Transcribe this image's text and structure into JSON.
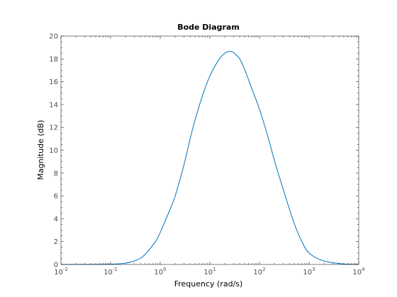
{
  "chart_data": {
    "type": "line",
    "title": "Bode Diagram",
    "xlabel": "Frequency  (rad/s)",
    "ylabel": "Magnitude (dB)",
    "xscale": "log",
    "xlim": [
      0.01,
      10000
    ],
    "ylim": [
      0,
      20
    ],
    "yticks": [
      0,
      2,
      4,
      6,
      8,
      10,
      12,
      14,
      16,
      18,
      20
    ],
    "xticks": [
      {
        "value": 0.01,
        "base": "10",
        "exp": "-2"
      },
      {
        "value": 0.1,
        "base": "10",
        "exp": "-1"
      },
      {
        "value": 1,
        "base": "10",
        "exp": "0"
      },
      {
        "value": 10,
        "base": "10",
        "exp": "1"
      },
      {
        "value": 100,
        "base": "10",
        "exp": "2"
      },
      {
        "value": 1000,
        "base": "10",
        "exp": "3"
      },
      {
        "value": 10000,
        "base": "10",
        "exp": "4"
      }
    ],
    "grid": false,
    "series": [
      {
        "color": "#0072bd",
        "x": [
          0.01,
          0.05,
          0.1,
          0.15,
          0.2,
          0.3,
          0.4,
          0.5,
          0.6,
          0.8,
          1,
          1.5,
          2,
          3,
          4,
          5,
          7,
          10,
          15,
          20,
          25,
          30,
          40,
          50,
          70,
          100,
          150,
          200,
          300,
          500,
          700,
          1000,
          2000,
          5000,
          10000
        ],
        "y": [
          0.0,
          0.01,
          0.03,
          0.06,
          0.12,
          0.3,
          0.55,
          0.9,
          1.3,
          2.0,
          2.8,
          4.6,
          6.0,
          8.7,
          11.0,
          12.6,
          14.7,
          16.5,
          17.9,
          18.5,
          18.65,
          18.55,
          18.0,
          17.1,
          15.4,
          13.6,
          11.1,
          9.1,
          6.6,
          3.6,
          2.1,
          1.0,
          0.3,
          0.05,
          0.01
        ]
      }
    ]
  }
}
